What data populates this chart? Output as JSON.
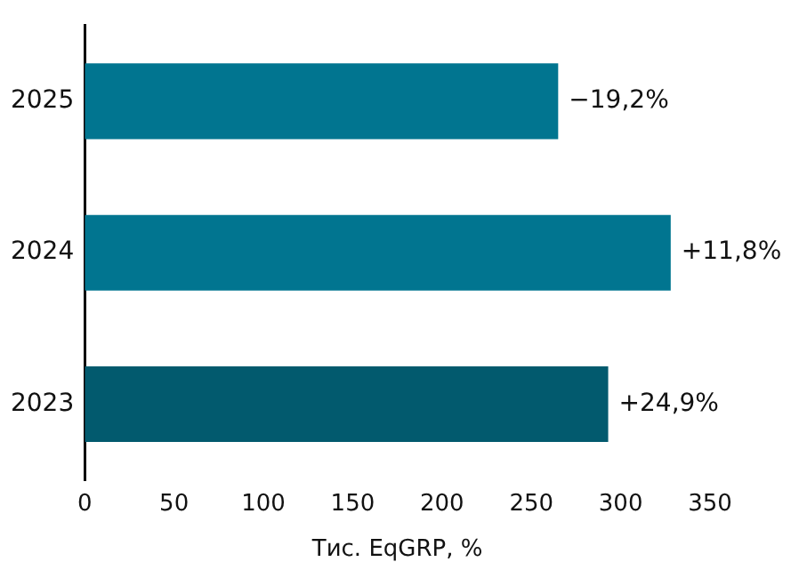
{
  "chart_data": {
    "type": "bar",
    "orientation": "horizontal",
    "xlabel": "Тис. EqGRP, %",
    "categories": [
      "2025",
      "2024",
      "2023"
    ],
    "values": [
      265,
      328,
      293
    ],
    "colors": [
      "#017590",
      "#017590",
      "#025a6e"
    ],
    "annotations": [
      {
        "text": "−19,2%",
        "x": 265,
        "y": "2025"
      },
      {
        "text": "+11,8%",
        "x": 328,
        "y": "2024"
      },
      {
        "text": "+24,9%",
        "x": 293,
        "y": "2023"
      }
    ],
    "xlim": [
      0,
      350
    ],
    "xticks": [
      0,
      50,
      100,
      150,
      200,
      250,
      300,
      350
    ],
    "grid": false,
    "legend": false
  }
}
